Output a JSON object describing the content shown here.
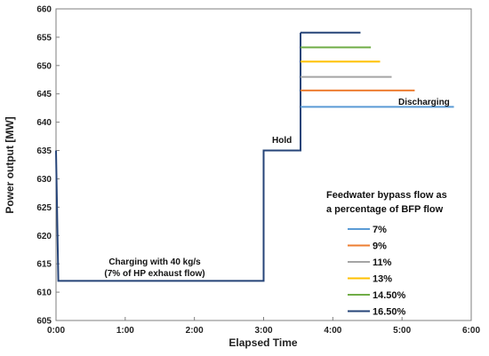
{
  "chart_data": {
    "type": "line",
    "xlabel": "Elapsed Time",
    "ylabel": "Power output [MW]",
    "xlim": [
      "0:00",
      "6:00"
    ],
    "ylim": [
      605,
      660
    ],
    "x_ticks": [
      "0:00",
      "1:00",
      "2:00",
      "3:00",
      "4:00",
      "5:00",
      "6:00"
    ],
    "y_ticks": [
      605,
      610,
      615,
      620,
      625,
      630,
      635,
      640,
      645,
      650,
      655,
      660
    ],
    "legend_title": [
      "Feedwater bypass flow as",
      "a percentage of BFP flow"
    ],
    "legend_position": "right",
    "annotations": {
      "charging": [
        "Charging with 40 kg/s",
        "(7% of HP exhaust flow)"
      ],
      "hold": "Hold",
      "discharging": "Discharging"
    },
    "base_path": {
      "x": [
        "0:00",
        "0:02",
        "0:03",
        "3:00",
        "3:00",
        "3:32",
        "3:32"
      ],
      "y": [
        635,
        612,
        612,
        612,
        635,
        635,
        643
      ]
    },
    "series": [
      {
        "name": "7%",
        "color": "#5b9bd5",
        "discharge_start": "3:32",
        "discharge_end": "5:45",
        "value": 642.7
      },
      {
        "name": "9%",
        "color": "#ed7d31",
        "discharge_start": "3:32",
        "discharge_end": "5:11",
        "value": 645.6
      },
      {
        "name": "11%",
        "color": "#a5a5a5",
        "discharge_start": "3:32",
        "discharge_end": "4:51",
        "value": 648.0
      },
      {
        "name": "13%",
        "color": "#ffc000",
        "discharge_start": "3:32",
        "discharge_end": "4:41",
        "value": 650.7
      },
      {
        "name": "14.50%",
        "color": "#70ad47",
        "discharge_start": "3:32",
        "discharge_end": "4:33",
        "value": 653.2
      },
      {
        "name": "16.50%",
        "color": "#264478",
        "discharge_start": "3:32",
        "discharge_end": "4:24",
        "value": 655.8
      }
    ]
  }
}
